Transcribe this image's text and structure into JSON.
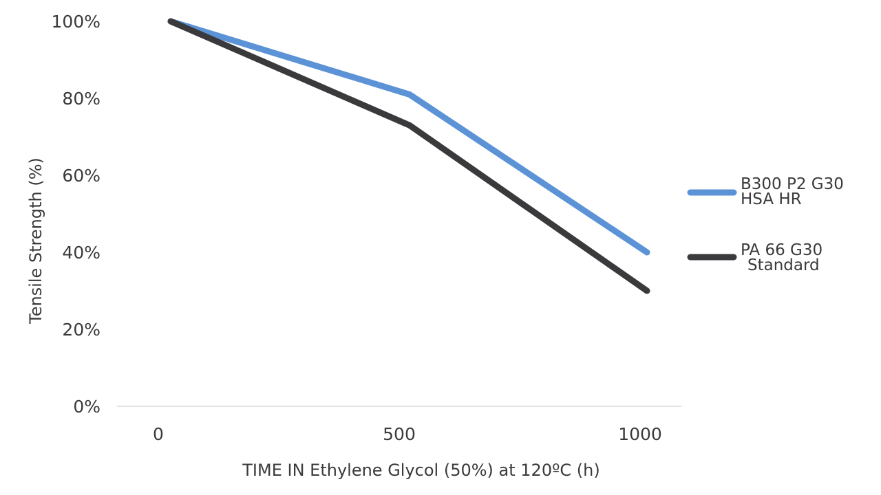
{
  "chart_data": {
    "type": "line",
    "title": "",
    "xlabel": "TIME IN Ethylene Glycol (50%) at 120ºC (h)",
    "ylabel": "Tensile Strength (%)",
    "categories": [
      "0",
      "500",
      "1000"
    ],
    "x": [
      0,
      500,
      1000
    ],
    "ylim": [
      0,
      100
    ],
    "y_ticks": [
      "0%",
      "20%",
      "40%",
      "60%",
      "80%",
      "100%"
    ],
    "grid": false,
    "legend_position": "right",
    "series": [
      {
        "name": "B300 P2 G30 HSA HR",
        "legend_lines": [
          "B300 P2 G30",
          "HSA HR"
        ],
        "color": "#5b93d6",
        "values": [
          100,
          81,
          40
        ]
      },
      {
        "name": "PA 66 G30 Standard",
        "legend_lines": [
          "PA  66 G30",
          "Standard"
        ],
        "color": "#3a3a3c",
        "values": [
          100,
          73,
          30
        ]
      }
    ]
  }
}
